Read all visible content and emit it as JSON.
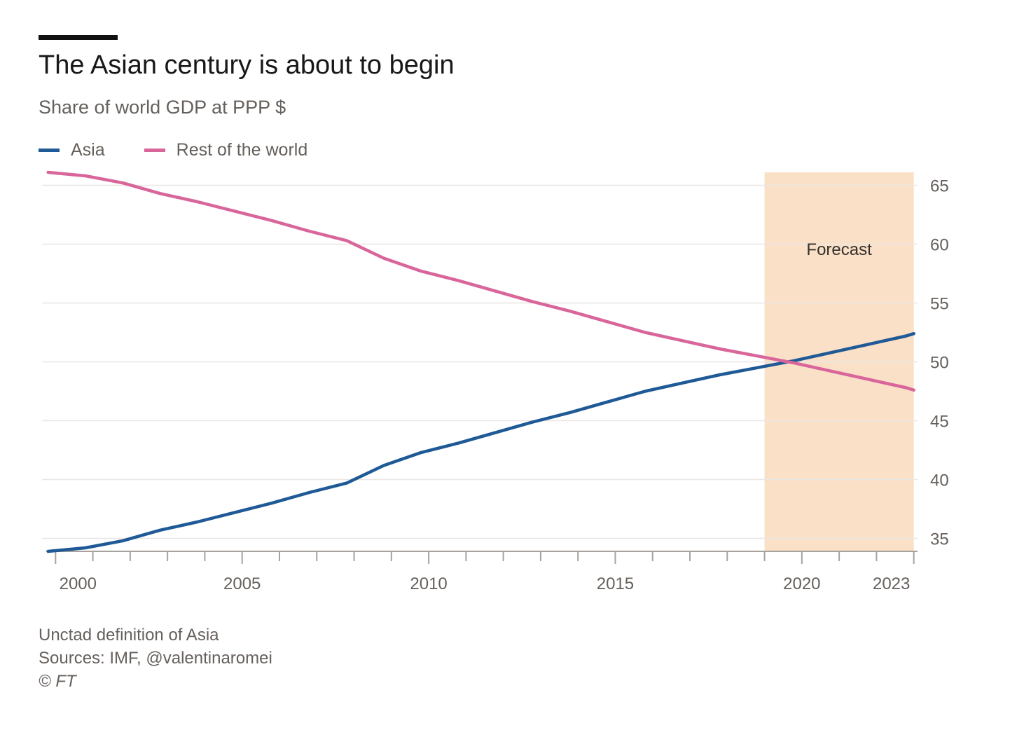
{
  "header": {
    "title": "The Asian century is about to begin",
    "subtitle": "Share of world GDP at PPP $"
  },
  "legend": {
    "items": [
      {
        "label": "Asia",
        "color": "#1f5a96"
      },
      {
        "label": "Rest of the world",
        "color": "#d9669b"
      }
    ]
  },
  "footer": {
    "note": "Unctad definition of Asia",
    "sources": "Sources: IMF, @valentinaromei",
    "copyright": "© FT"
  },
  "chart_data": {
    "type": "line",
    "title": "The Asian century is about to begin",
    "subtitle": "Share of world GDP at PPP $",
    "x": [
      1999.8,
      2000.8,
      2001.8,
      2002.8,
      2003.8,
      2004.8,
      2005.8,
      2006.8,
      2007.8,
      2008.8,
      2009.8,
      2010.8,
      2011.8,
      2012.8,
      2013.8,
      2014.8,
      2015.8,
      2016.8,
      2017.8,
      2018.8,
      2019.8,
      2020.8,
      2021.8,
      2022.8,
      2023.0
    ],
    "series": [
      {
        "name": "Asia",
        "color": "#1f5a96",
        "values": [
          33.9,
          34.2,
          34.8,
          35.7,
          36.4,
          37.2,
          38.0,
          38.9,
          39.7,
          41.2,
          42.3,
          43.1,
          44.0,
          44.9,
          45.7,
          46.6,
          47.5,
          48.2,
          48.9,
          49.5,
          50.1,
          50.8,
          51.5,
          52.2,
          52.4
        ]
      },
      {
        "name": "Rest of the world",
        "color": "#d9669b",
        "values": [
          66.1,
          65.8,
          65.2,
          64.3,
          63.6,
          62.8,
          62.0,
          61.1,
          60.3,
          58.8,
          57.7,
          56.9,
          56.0,
          55.1,
          54.3,
          53.4,
          52.5,
          51.8,
          51.1,
          50.5,
          49.9,
          49.2,
          48.5,
          47.8,
          47.6
        ]
      }
    ],
    "xlim": [
      1999.75,
      2023.1
    ],
    "ylim": [
      33.9,
      66.1
    ],
    "yticks": [
      35,
      40,
      45,
      50,
      55,
      60,
      65
    ],
    "xticks_labeled": [
      2000,
      2005,
      2010,
      2015,
      2020,
      2023
    ],
    "xticks_minor": [
      2000,
      2001,
      2002,
      2003,
      2004,
      2005,
      2006,
      2007,
      2008,
      2009,
      2010,
      2011,
      2012,
      2013,
      2014,
      2015,
      2016,
      2017,
      2018,
      2019,
      2020,
      2021,
      2022,
      2023
    ],
    "y_axis_side": "right",
    "grid": true,
    "legend_position": "top-left",
    "forecast": {
      "label": "Forecast",
      "start": 2019.0,
      "end": 2023.0,
      "color": "#fbe0c8"
    },
    "grid_color": "#e9e6e3",
    "axis_color": "#a7a29e",
    "tick_label_color": "#66605c"
  }
}
